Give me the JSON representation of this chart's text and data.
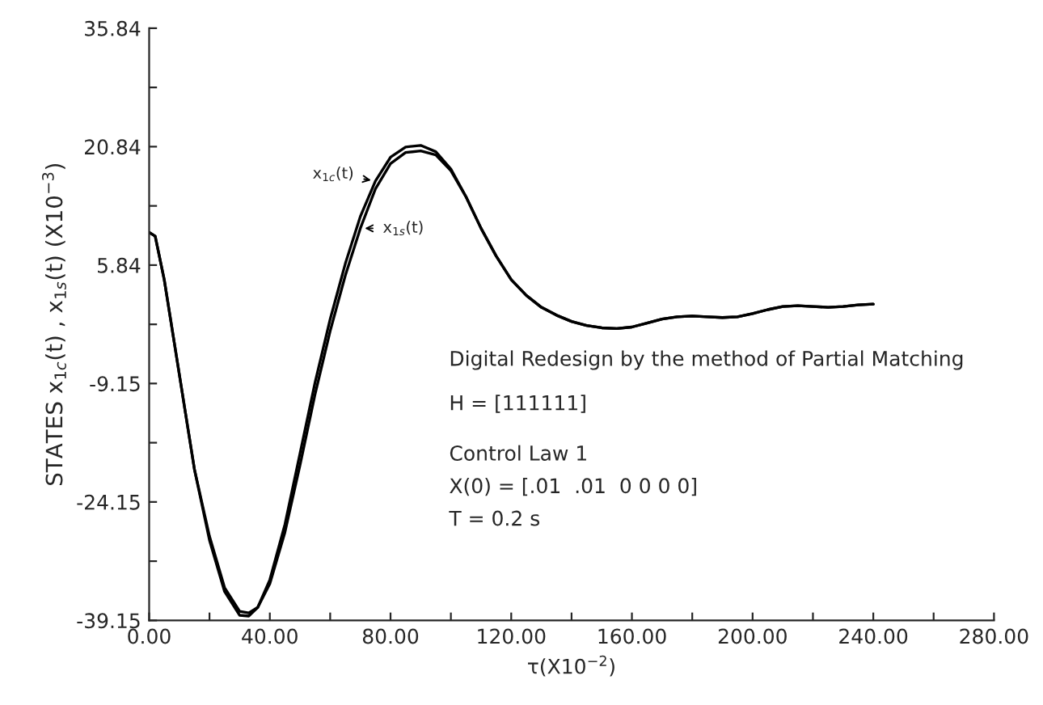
{
  "chart_data": {
    "type": "line",
    "xlabel": "τ(X10$^{−2}$)",
    "ylabel": "STATES x$_{1c}$(t) , x$_{1s}$(t) (X10$^{−3}$)",
    "x": [
      0,
      2,
      5,
      10,
      15,
      20,
      25,
      30,
      33,
      36,
      40,
      45,
      50,
      55,
      60,
      65,
      70,
      75,
      80,
      85,
      90,
      95,
      100,
      105,
      110,
      115,
      120,
      125,
      130,
      135,
      140,
      145,
      150,
      155,
      160,
      165,
      170,
      175,
      180,
      185,
      190,
      195,
      200,
      205,
      210,
      215,
      220,
      225,
      230,
      235,
      240
    ],
    "series": [
      {
        "name": "x$_{1c}$(t)",
        "color": "#000000",
        "values": [
          10.0,
          9.5,
          4,
          -8,
          -20,
          -29,
          -35.5,
          -38.5,
          -38.6,
          -37.5,
          -34,
          -27,
          -18,
          -9,
          -1,
          6,
          12,
          16.5,
          19.5,
          20.8,
          21.0,
          20.2,
          18,
          14.5,
          10.5,
          7,
          4,
          2,
          0.5,
          -0.5,
          -1.3,
          -1.8,
          -2.1,
          -2.2,
          -2,
          -1.5,
          -1,
          -0.7,
          -0.6,
          -0.7,
          -0.8,
          -0.7,
          -0.3,
          0.2,
          0.6,
          0.7,
          0.6,
          0.5,
          0.6,
          0.8,
          0.9
        ]
      },
      {
        "name": "x$_{1s}$(t)",
        "color": "#000000",
        "values": [
          10.0,
          9.5,
          4,
          -8,
          -20,
          -28.5,
          -35,
          -38,
          -38.2,
          -37.5,
          -34.5,
          -28,
          -19.5,
          -10.5,
          -2.5,
          4.5,
          10.5,
          15.5,
          18.7,
          20.1,
          20.3,
          19.8,
          17.8,
          14.5,
          10.5,
          7,
          4,
          2,
          0.5,
          -0.5,
          -1.3,
          -1.8,
          -2.1,
          -2.2,
          -2,
          -1.5,
          -1,
          -0.7,
          -0.6,
          -0.7,
          -0.8,
          -0.7,
          -0.3,
          0.2,
          0.6,
          0.7,
          0.6,
          0.5,
          0.6,
          0.8,
          0.9
        ]
      }
    ],
    "xlim": [
      0,
      280
    ],
    "ylim": [
      -39.15,
      35.84
    ],
    "xticks": [
      {
        "value": 0,
        "label": "0.00"
      },
      {
        "value": 20,
        "label": null
      },
      {
        "value": 40,
        "label": "40.00"
      },
      {
        "value": 60,
        "label": null
      },
      {
        "value": 80,
        "label": "80.00"
      },
      {
        "value": 100,
        "label": null
      },
      {
        "value": 120,
        "label": "120.00"
      },
      {
        "value": 140,
        "label": null
      },
      {
        "value": 160,
        "label": "160.00"
      },
      {
        "value": 180,
        "label": null
      },
      {
        "value": 200,
        "label": "200.00"
      },
      {
        "value": 220,
        "label": null
      },
      {
        "value": 240,
        "label": "240.00"
      },
      {
        "value": 260,
        "label": null
      },
      {
        "value": 280,
        "label": "280.00"
      }
    ],
    "yticks": [
      {
        "value": -39.15,
        "label": "-39.15"
      },
      {
        "value": -31.65,
        "label": null
      },
      {
        "value": -24.15,
        "label": "-24.15"
      },
      {
        "value": -16.65,
        "label": null
      },
      {
        "value": -9.15,
        "label": "-9.15"
      },
      {
        "value": -1.66,
        "label": null
      },
      {
        "value": 5.84,
        "label": "5.84"
      },
      {
        "value": 13.34,
        "label": null
      },
      {
        "value": 20.84,
        "label": "20.84"
      },
      {
        "value": 28.34,
        "label": null
      },
      {
        "value": 35.84,
        "label": "35.84"
      }
    ],
    "annotations": [
      "Digital Redesign by the method of Partial Matching",
      "H = [111111]",
      "Control Law 1",
      "X(0) = [.01  .01  0 0 0 0]",
      "T = 0.2 s"
    ],
    "grid": false,
    "marker": "none",
    "line_style": "solid"
  }
}
